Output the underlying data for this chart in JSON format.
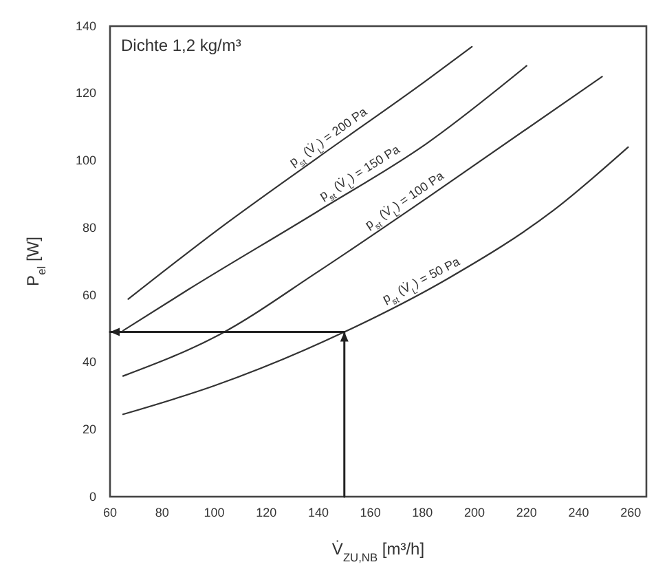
{
  "chart_data": {
    "type": "line",
    "xlabel": "V̇$_{ZU,NB}$ [m³/h]",
    "ylabel": "P$_{el}$ [W]",
    "xlim": [
      60,
      266
    ],
    "ylim": [
      0,
      140
    ],
    "xticks": [
      60,
      80,
      100,
      120,
      140,
      160,
      180,
      200,
      220,
      240,
      260
    ],
    "yticks": [
      0,
      20,
      40,
      60,
      80,
      100,
      120,
      140
    ],
    "grid": false,
    "marker": "none",
    "line_style": "solid",
    "annotations": [
      "Dichte 1,2 kg/m³"
    ],
    "series": [
      {
        "name": "p$_{st}$ (V̇$_{L}$) = 200 Pa",
        "color": "#333333",
        "x": [
          67,
          101,
          140,
          182,
          199
        ],
        "values": [
          58.8,
          79.2,
          101,
          124.1,
          133.9
        ]
      },
      {
        "name": "p$_{st}$ (V̇$_{L}$) = 150 Pa",
        "color": "#333333",
        "x": [
          65,
          90,
          140,
          182,
          220
        ],
        "values": [
          49.4,
          61.6,
          85,
          105.3,
          128.2
        ]
      },
      {
        "name": "p$_{st}$ (V̇$_{L}$) = 100 Pa",
        "color": "#333333",
        "x": [
          65,
          102,
          140,
          182,
          249
        ],
        "values": [
          35.9,
          48.2,
          67,
          89,
          125
        ]
      },
      {
        "name": "p$_{st}$ (V̇$_{L}$) = 50 Pa",
        "color": "#333333",
        "x": [
          65,
          100,
          150,
          190,
          230,
          259
        ],
        "values": [
          24.5,
          33,
          49,
          65,
          85,
          104
        ]
      },
      {
        "color": "#222222",
        "x": [
          150,
          150,
          60
        ],
        "values": [
          0,
          49,
          49
        ]
      }
    ]
  }
}
